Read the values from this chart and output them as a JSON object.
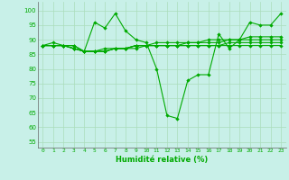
{
  "bg_color": "#c8f0e8",
  "grid_color": "#aaddbb",
  "line_color": "#00aa00",
  "xlabel": "Humidité relative (%)",
  "ylabel_ticks": [
    55,
    60,
    65,
    70,
    75,
    80,
    85,
    90,
    95,
    100
  ],
  "xlim": [
    -0.5,
    23.5
  ],
  "ylim": [
    53,
    103
  ],
  "xticks": [
    0,
    1,
    2,
    3,
    4,
    5,
    6,
    7,
    8,
    9,
    10,
    11,
    12,
    13,
    14,
    15,
    16,
    17,
    18,
    19,
    20,
    21,
    22,
    23
  ],
  "main_line": [
    88,
    89,
    88,
    88,
    86,
    96,
    94,
    99,
    93,
    90,
    89,
    80,
    64,
    63,
    76,
    78,
    78,
    92,
    87,
    90,
    96,
    95,
    95,
    99
  ],
  "flat_lines": [
    [
      88,
      88,
      88,
      88,
      86,
      86,
      87,
      87,
      87,
      88,
      88,
      88,
      88,
      88,
      88,
      88,
      88,
      88,
      88,
      88,
      88,
      88,
      88,
      88
    ],
    [
      88,
      88,
      88,
      87,
      86,
      86,
      86,
      87,
      87,
      87,
      88,
      88,
      88,
      88,
      88,
      88,
      88,
      88,
      89,
      89,
      89,
      89,
      89,
      89
    ],
    [
      88,
      88,
      88,
      87,
      86,
      86,
      86,
      87,
      87,
      88,
      88,
      88,
      88,
      88,
      89,
      89,
      89,
      89,
      90,
      90,
      90,
      90,
      90,
      90
    ],
    [
      88,
      88,
      88,
      87,
      86,
      86,
      86,
      87,
      87,
      88,
      88,
      89,
      89,
      89,
      89,
      89,
      90,
      90,
      90,
      90,
      91,
      91,
      91,
      91
    ]
  ]
}
